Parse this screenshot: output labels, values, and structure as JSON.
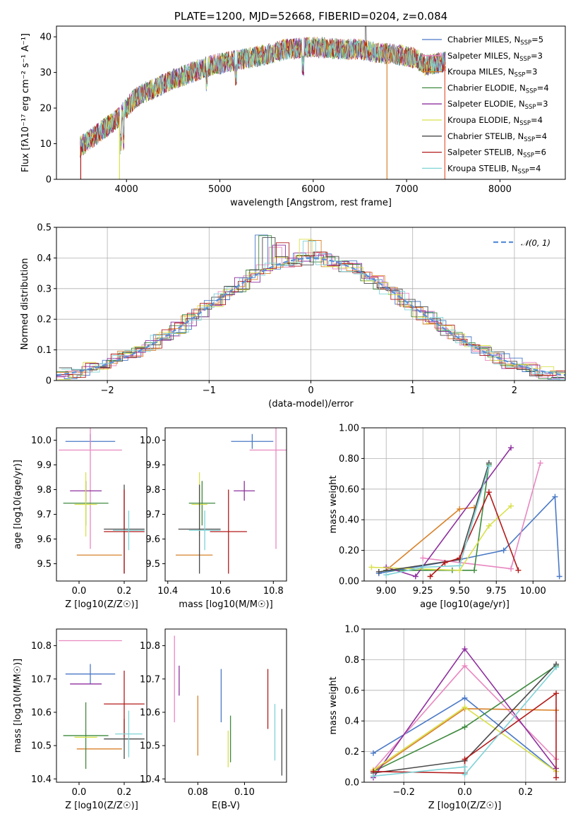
{
  "chart_data": [
    {
      "id": "spectrum",
      "type": "line",
      "title": "PLATE=1200, MJD=52668, FIBERID=0204, z=0.084",
      "xlabel": "wavelength [Angstrom, rest frame]",
      "ylabel": "Flux [fλ10⁻¹⁷ erg cm⁻² s⁻¹ A⁻¹]",
      "xlim": [
        3250,
        8700
      ],
      "ylim": [
        0,
        43
      ],
      "xticks": [
        4000,
        5000,
        6000,
        7000,
        8000
      ],
      "yticks": [
        0,
        10,
        20,
        30,
        40
      ],
      "grid": false,
      "legend_position": "top-right",
      "legend": [
        {
          "label": "Chabrier MILES, N",
          "sub": "SSP",
          "val": "=5",
          "color": "#4a79c6"
        },
        {
          "label": "Salpeter MILES, N",
          "sub": "SSP",
          "val": "=3",
          "color": "#e888c0"
        },
        {
          "label": "Kroupa MILES, N",
          "sub": "SSP",
          "val": "=3",
          "color": "#d9822b"
        },
        {
          "label": "Chabrier ELODIE, N",
          "sub": "SSP",
          "val": "=4",
          "color": "#3f8a3f"
        },
        {
          "label": "Salpeter ELODIE, N",
          "sub": "SSP",
          "val": "=3",
          "color": "#8e2f9e"
        },
        {
          "label": "Kroupa ELODIE, N",
          "sub": "SSP",
          "val": "=4",
          "color": "#d8e04a"
        },
        {
          "label": "Chabrier STELIB, N",
          "sub": "SSP",
          "val": "=4",
          "color": "#4a4a4a"
        },
        {
          "label": "Salpeter STELIB, N",
          "sub": "SSP",
          "val": "=6",
          "color": "#b31b1b"
        },
        {
          "label": "Kroupa STELIB, N",
          "sub": "SSP",
          "val": "=4",
          "color": "#7fd3d6"
        }
      ],
      "continuum": {
        "x": [
          3500,
          3600,
          3700,
          3800,
          3900,
          4000,
          4100,
          4200,
          4300,
          4500,
          4700,
          4900,
          5100,
          5300,
          5500,
          5700,
          5900,
          6100,
          6300,
          6500,
          6700,
          6900,
          7100,
          7200,
          7400
        ],
        "y": [
          9,
          11,
          13,
          15,
          17,
          20,
          23,
          24.5,
          25.5,
          28,
          30,
          32,
          33,
          34,
          35,
          36.5,
          37,
          37,
          36.5,
          36.5,
          35.5,
          35,
          34,
          32,
          33
        ]
      }
    },
    {
      "id": "residuals",
      "type": "line",
      "xlabel": "(data-model)/error",
      "ylabel": "Normed distribution",
      "xlim": [
        -2.5,
        2.5
      ],
      "ylim": [
        0,
        0.5
      ],
      "xticks": [
        -2,
        -1,
        0,
        1,
        2
      ],
      "yticks": [
        0.0,
        0.1,
        0.2,
        0.3,
        0.4,
        0.5
      ],
      "grid": true,
      "legend": [
        {
          "label": "𝒩(0, 1)",
          "color": "#5b8fd8",
          "style": "dashed"
        }
      ],
      "legend_position": "top-right",
      "bins": {
        "start": -2.5,
        "width": 0.125,
        "count": 40
      },
      "series_colors": [
        "#4a79c6",
        "#e888c0",
        "#d9822b",
        "#3f8a3f",
        "#8e2f9e",
        "#d8e04a",
        "#4a4a4a",
        "#b31b1b",
        "#7fd3d6"
      ],
      "peaks": {
        "x": [
          -0.44,
          -0.3,
          0.0,
          0.19
        ],
        "y": [
          0.48,
          0.45,
          0.47,
          0.42
        ]
      }
    },
    {
      "id": "age-vs-Z",
      "type": "scatter",
      "xlabel": "Z [log10(Z/Z☉)]",
      "ylabel": "age  [log10(age/yr)]",
      "xlim": [
        -0.1,
        0.3
      ],
      "ylim": [
        9.43,
        10.05
      ],
      "xticks": [
        0.0,
        0.2
      ],
      "yticks": [
        9.5,
        9.6,
        9.7,
        9.8,
        9.9,
        10.0
      ],
      "grid": false,
      "points": [
        {
          "x": 0.05,
          "y": 9.995,
          "xerr": 0.11,
          "yerr": 0.03,
          "color": "#4a79c6"
        },
        {
          "x": 0.05,
          "y": 9.96,
          "xerr": 0.14,
          "yerr": 0.4,
          "color": "#e888c0"
        },
        {
          "x": 0.09,
          "y": 9.535,
          "xerr": 0.1,
          "yerr": 0.0,
          "color": "#d9822b"
        },
        {
          "x": 0.03,
          "y": 9.745,
          "xerr": 0.1,
          "yerr": 0.09,
          "color": "#3f8a3f"
        },
        {
          "x": 0.03,
          "y": 9.795,
          "xerr": 0.07,
          "yerr": 0.04,
          "color": "#8e2f9e"
        },
        {
          "x": 0.03,
          "y": 9.74,
          "xerr": 0.05,
          "yerr": 0.13,
          "color": "#d8e04a"
        },
        {
          "x": 0.2,
          "y": 9.64,
          "xerr": 0.09,
          "yerr": 0.18,
          "color": "#4a4a4a"
        },
        {
          "x": 0.2,
          "y": 9.63,
          "xerr": 0.09,
          "yerr": 0.17,
          "color": "#b31b1b"
        },
        {
          "x": 0.22,
          "y": 9.635,
          "xerr": 0.07,
          "yerr": 0.08,
          "color": "#7fd3d6"
        }
      ]
    },
    {
      "id": "age-vs-mass",
      "type": "scatter",
      "xlabel": "mass [log10(M/M☉)]",
      "ylabel": "",
      "xlim": [
        10.39,
        10.85
      ],
      "ylim": [
        9.43,
        10.05
      ],
      "xticks": [
        10.4,
        10.6,
        10.8
      ],
      "yticks": [
        9.5,
        9.6,
        9.7,
        9.8,
        9.9,
        10.0
      ],
      "grid": false,
      "points": [
        {
          "x": 10.72,
          "y": 9.995,
          "xerr": 0.08,
          "yerr": 0.03,
          "color": "#4a79c6"
        },
        {
          "x": 10.81,
          "y": 9.96,
          "xerr": 0.1,
          "yerr": 0.4,
          "color": "#e888c0"
        },
        {
          "x": 10.5,
          "y": 9.535,
          "xerr": 0.07,
          "yerr": 0.0,
          "color": "#d9822b"
        },
        {
          "x": 10.53,
          "y": 9.745,
          "xerr": 0.05,
          "yerr": 0.09,
          "color": "#3f8a3f"
        },
        {
          "x": 10.69,
          "y": 9.795,
          "xerr": 0.04,
          "yerr": 0.04,
          "color": "#8e2f9e"
        },
        {
          "x": 10.52,
          "y": 9.74,
          "xerr": 0.03,
          "yerr": 0.13,
          "color": "#d8e04a"
        },
        {
          "x": 10.52,
          "y": 9.64,
          "xerr": 0.08,
          "yerr": 0.18,
          "color": "#4a4a4a"
        },
        {
          "x": 10.63,
          "y": 9.63,
          "xerr": 0.07,
          "yerr": 0.17,
          "color": "#b31b1b"
        },
        {
          "x": 10.54,
          "y": 9.635,
          "xerr": 0.06,
          "yerr": 0.08,
          "color": "#7fd3d6"
        }
      ]
    },
    {
      "id": "weight-vs-age",
      "type": "line",
      "xlabel": "age  [log10(age/yr)]",
      "ylabel": "mass weight",
      "xlim": [
        8.85,
        10.22
      ],
      "ylim": [
        0,
        1.0
      ],
      "xticks": [
        9.0,
        9.25,
        9.5,
        9.75,
        10.0
      ],
      "yticks": [
        0.0,
        0.2,
        0.4,
        0.6,
        0.8,
        1.0
      ],
      "grid": true,
      "series": [
        {
          "color": "#4a79c6",
          "x": [
            8.95,
            9.5,
            9.8,
            10.15,
            10.18
          ],
          "y": [
            0.05,
            0.14,
            0.2,
            0.55,
            0.03
          ]
        },
        {
          "color": "#e888c0",
          "x": [
            9.25,
            9.85,
            10.05
          ],
          "y": [
            0.15,
            0.08,
            0.77
          ]
        },
        {
          "color": "#d9822b",
          "x": [
            9.0,
            9.5,
            9.6
          ],
          "y": [
            0.07,
            0.47,
            0.48
          ]
        },
        {
          "color": "#3f8a3f",
          "x": [
            9.0,
            9.45,
            9.6,
            9.7
          ],
          "y": [
            0.07,
            0.07,
            0.07,
            0.76
          ]
        },
        {
          "color": "#8e2f9e",
          "x": [
            9.0,
            9.2,
            9.85
          ],
          "y": [
            0.09,
            0.03,
            0.87
          ]
        },
        {
          "color": "#d8e04a",
          "x": [
            8.9,
            9.5,
            9.7,
            9.85
          ],
          "y": [
            0.09,
            0.07,
            0.36,
            0.49
          ]
        },
        {
          "color": "#4a4a4a",
          "x": [
            8.95,
            9.5,
            9.7
          ],
          "y": [
            0.06,
            0.14,
            0.77
          ]
        },
        {
          "color": "#b31b1b",
          "x": [
            9.3,
            9.4,
            9.5,
            9.7,
            9.9
          ],
          "y": [
            0.03,
            0.12,
            0.15,
            0.58,
            0.07
          ]
        },
        {
          "color": "#7fd3d6",
          "x": [
            9.0,
            9.25,
            9.5,
            9.7
          ],
          "y": [
            0.04,
            0.09,
            0.1,
            0.75
          ]
        }
      ]
    },
    {
      "id": "mass-vs-Z",
      "type": "scatter",
      "xlabel": "Z [log10(Z/Z☉)]",
      "ylabel": "mass [log10(M/M☉)]",
      "xlim": [
        -0.1,
        0.3
      ],
      "ylim": [
        10.39,
        10.85
      ],
      "xticks": [
        0.0,
        0.2
      ],
      "yticks": [
        10.4,
        10.5,
        10.6,
        10.7,
        10.8
      ],
      "grid": false,
      "points": [
        {
          "x": 0.05,
          "y": 10.715,
          "xerr": 0.11,
          "yerr": 0.03,
          "color": "#4a79c6"
        },
        {
          "x": 0.05,
          "y": 10.815,
          "xerr": 0.14,
          "yerr": 0.0,
          "color": "#e888c0"
        },
        {
          "x": 0.09,
          "y": 10.49,
          "xerr": 0.1,
          "yerr": 0.0,
          "color": "#d9822b"
        },
        {
          "x": 0.03,
          "y": 10.53,
          "xerr": 0.1,
          "yerr": 0.1,
          "color": "#3f8a3f"
        },
        {
          "x": 0.03,
          "y": 10.685,
          "xerr": 0.07,
          "yerr": 0.0,
          "color": "#8e2f9e"
        },
        {
          "x": 0.03,
          "y": 10.525,
          "xerr": 0.05,
          "yerr": 0.0,
          "color": "#d8e04a"
        },
        {
          "x": 0.2,
          "y": 10.52,
          "xerr": 0.09,
          "yerr": 0.06,
          "color": "#4a4a4a"
        },
        {
          "x": 0.2,
          "y": 10.625,
          "xerr": 0.09,
          "yerr": 0.1,
          "color": "#b31b1b"
        },
        {
          "x": 0.22,
          "y": 10.535,
          "xerr": 0.06,
          "yerr": 0.07,
          "color": "#7fd3d6"
        }
      ]
    },
    {
      "id": "mass-vs-ebv",
      "type": "scatter",
      "xlabel": "E(B-V)",
      "ylabel": "",
      "xlim": [
        0.066,
        0.118
      ],
      "ylim": [
        10.39,
        10.85
      ],
      "xticks": [
        0.08,
        0.1
      ],
      "yticks": [
        10.4,
        10.5,
        10.6,
        10.7,
        10.8
      ],
      "grid": false,
      "points": [
        {
          "x": 0.09,
          "y": 10.65,
          "xerr": 0,
          "yerr": 0.08,
          "color": "#4a79c6"
        },
        {
          "x": 0.07,
          "y": 10.7,
          "xerr": 0,
          "yerr": 0.13,
          "color": "#e888c0"
        },
        {
          "x": 0.08,
          "y": 10.56,
          "xerr": 0,
          "yerr": 0.09,
          "color": "#d9822b"
        },
        {
          "x": 0.094,
          "y": 10.52,
          "xerr": 0,
          "yerr": 0.07,
          "color": "#3f8a3f"
        },
        {
          "x": 0.072,
          "y": 10.695,
          "xerr": 0,
          "yerr": 0.045,
          "color": "#8e2f9e"
        },
        {
          "x": 0.093,
          "y": 10.49,
          "xerr": 0,
          "yerr": 0.055,
          "color": "#d8e04a"
        },
        {
          "x": 0.116,
          "y": 10.51,
          "xerr": 0,
          "yerr": 0.1,
          "color": "#4a4a4a"
        },
        {
          "x": 0.11,
          "y": 10.64,
          "xerr": 0,
          "yerr": 0.09,
          "color": "#b31b1b"
        },
        {
          "x": 0.113,
          "y": 10.54,
          "xerr": 0,
          "yerr": 0.085,
          "color": "#7fd3d6"
        }
      ]
    },
    {
      "id": "weight-vs-Z",
      "type": "line",
      "xlabel": "Z [log10(Z/Z☉)]",
      "ylabel": "mass weight",
      "xlim": [
        -0.33,
        0.33
      ],
      "ylim": [
        0,
        1.0
      ],
      "xticks": [
        -0.2,
        0.0,
        0.2
      ],
      "yticks": [
        0.0,
        0.2,
        0.4,
        0.6,
        0.8,
        1.0
      ],
      "grid": true,
      "series": [
        {
          "color": "#4a79c6",
          "x": [
            -0.3,
            0.0,
            0.3
          ],
          "y": [
            0.19,
            0.55,
            0.07
          ]
        },
        {
          "color": "#e888c0",
          "x": [
            -0.3,
            0.0,
            0.3
          ],
          "y": [
            0.08,
            0.76,
            0.15
          ]
        },
        {
          "color": "#d9822b",
          "x": [
            -0.3,
            0.0,
            0.3
          ],
          "y": [
            0.07,
            0.48,
            0.47
          ]
        },
        {
          "color": "#3f8a3f",
          "x": [
            -0.3,
            0.0,
            0.3
          ],
          "y": [
            0.07,
            0.36,
            0.76
          ]
        },
        {
          "color": "#8e2f9e",
          "x": [
            -0.3,
            0.0,
            0.3
          ],
          "y": [
            0.03,
            0.87,
            0.09
          ]
        },
        {
          "color": "#d8e04a",
          "x": [
            -0.3,
            0.0,
            0.3
          ],
          "y": [
            0.08,
            0.49,
            0.07
          ]
        },
        {
          "color": "#4a4a4a",
          "x": [
            -0.3,
            0.0,
            0.3
          ],
          "y": [
            0.06,
            0.14,
            0.77
          ]
        },
        {
          "color": "#b31b1b",
          "x": [
            -0.3,
            0.0,
            0.0,
            0.3,
            0.3
          ],
          "y": [
            0.07,
            0.06,
            0.15,
            0.58,
            0.03
          ]
        },
        {
          "color": "#7fd3d6",
          "x": [
            -0.3,
            0.0,
            0.0,
            0.3
          ],
          "y": [
            0.04,
            0.1,
            0.05,
            0.75
          ]
        }
      ]
    }
  ]
}
